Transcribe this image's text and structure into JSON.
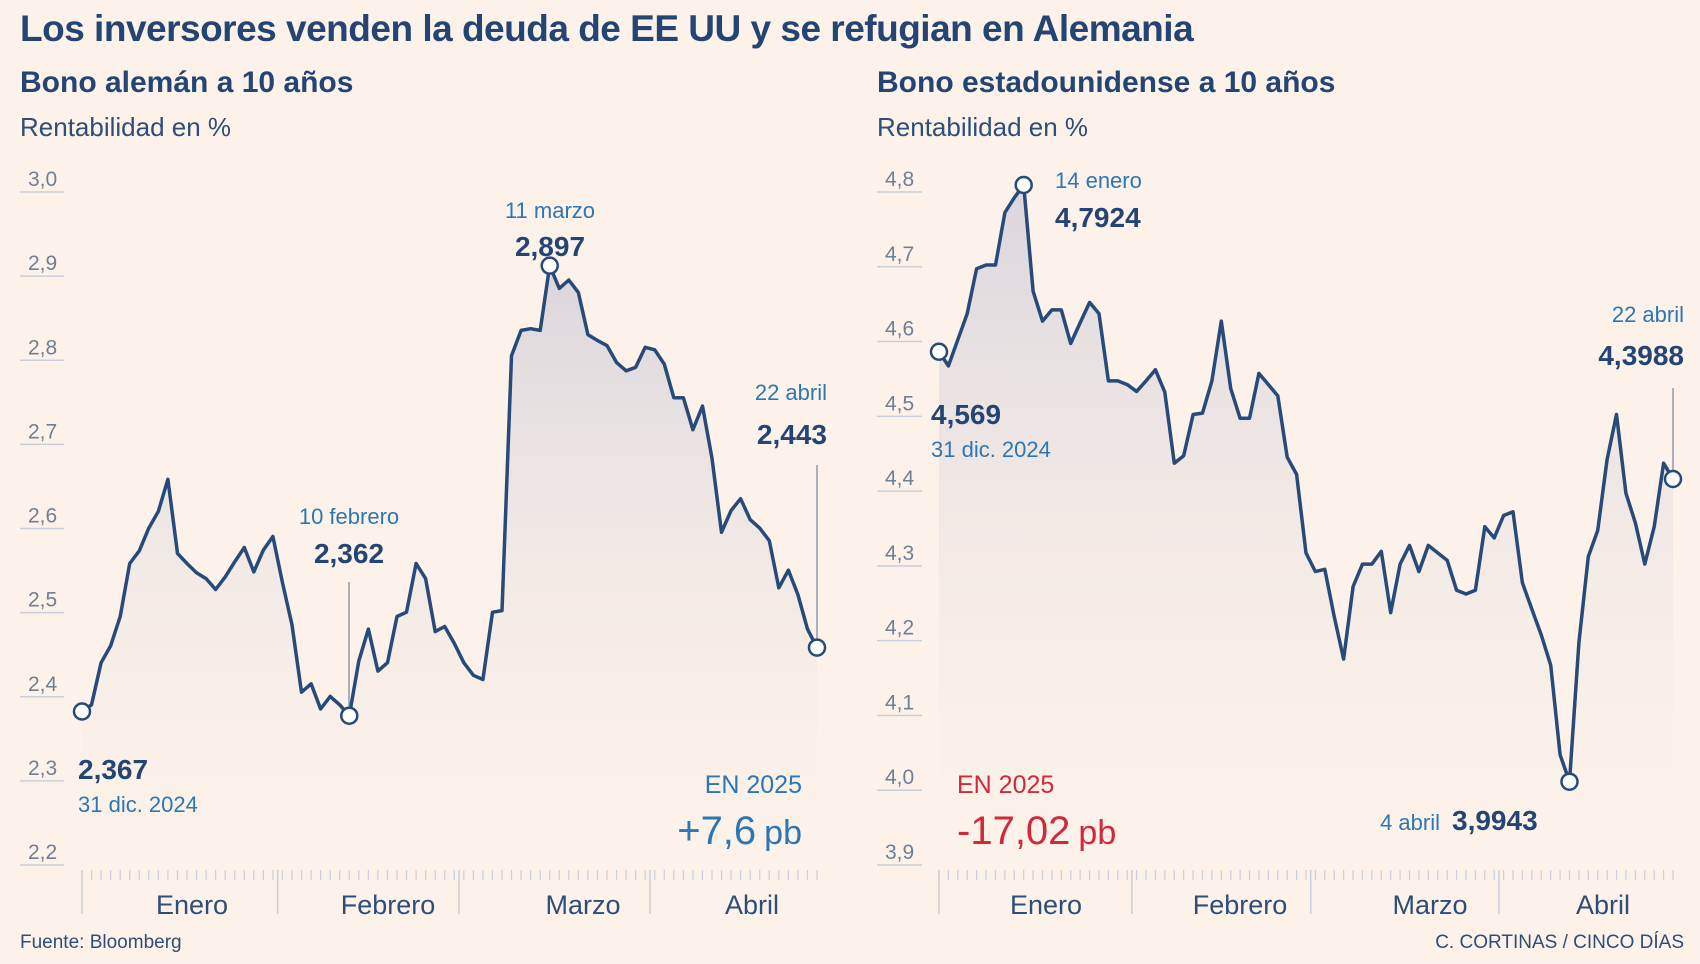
{
  "title": "Los inversores venden la deuda de EE UU y se refugian en Alemania",
  "footer": {
    "source": "Fuente: Bloomberg",
    "credit": "C. CORTINAS / CINCO DÍAS"
  },
  "colors": {
    "line": "#274a7a",
    "accent_blue": "#2d76b4",
    "accent_red": "#d2283c",
    "grid": "#c9cfdb",
    "fill_top": "#d9d4dc"
  },
  "chart_data": [
    {
      "type": "line",
      "title": "Bono alemán a 10 años",
      "ylabel": "Rentabilidad en %",
      "ylim": [
        2.2,
        3.0
      ],
      "yticks": [
        3.0,
        2.9,
        2.8,
        2.7,
        2.6,
        2.5,
        2.4,
        2.3,
        2.2
      ],
      "ytick_labels": [
        "3,0",
        "2,9",
        "2,8",
        "2,7",
        "2,6",
        "2,5",
        "2,4",
        "2,3",
        "2,2"
      ],
      "months": [
        "Enero",
        "Febrero",
        "Marzo",
        "Abril"
      ],
      "month_bounds": [
        0,
        21,
        40,
        60,
        74
      ],
      "values": [
        2.367,
        2.375,
        2.425,
        2.445,
        2.48,
        2.543,
        2.558,
        2.585,
        2.605,
        2.643,
        2.555,
        2.543,
        2.532,
        2.525,
        2.512,
        2.527,
        2.545,
        2.562,
        2.533,
        2.559,
        2.575,
        2.52,
        2.47,
        2.39,
        2.4,
        2.37,
        2.385,
        2.375,
        2.362,
        2.427,
        2.465,
        2.415,
        2.425,
        2.48,
        2.485,
        2.543,
        2.525,
        2.462,
        2.468,
        2.448,
        2.425,
        2.41,
        2.405,
        2.485,
        2.487,
        2.79,
        2.82,
        2.822,
        2.82,
        2.897,
        2.87,
        2.88,
        2.865,
        2.815,
        2.808,
        2.802,
        2.782,
        2.772,
        2.776,
        2.8,
        2.797,
        2.78,
        2.74,
        2.74,
        2.702,
        2.73,
        2.668,
        2.58,
        2.606,
        2.62,
        2.595,
        2.585,
        2.57,
        2.514,
        2.535,
        2.506,
        2.465,
        2.443
      ],
      "annotations": [
        {
          "date": "31 dic. 2024",
          "value": "2,367"
        },
        {
          "date": "10 febrero",
          "value": "2,362"
        },
        {
          "date": "11 marzo",
          "value": "2,897"
        },
        {
          "date": "22 abril",
          "value": "2,443"
        }
      ],
      "summary": {
        "label": "EN 2025",
        "value": "+7,6",
        "unit": "pb"
      }
    },
    {
      "type": "line",
      "title": "Bono estadounidense a 10 años",
      "ylabel": "Rentabilidad en %",
      "ylim": [
        3.9,
        4.8
      ],
      "yticks": [
        4.8,
        4.7,
        4.6,
        4.5,
        4.4,
        4.3,
        4.2,
        4.1,
        4.0,
        3.9
      ],
      "ytick_labels": [
        "4,8",
        "4,7",
        "4,6",
        "4,5",
        "4,4",
        "4,3",
        "4,2",
        "4,1",
        "4,0",
        "3,9"
      ],
      "months": [
        "Enero",
        "Febrero",
        "Marzo",
        "Abril"
      ],
      "month_bounds": [
        0,
        21,
        40,
        60,
        74
      ],
      "values": [
        4.569,
        4.55,
        4.585,
        4.62,
        4.68,
        4.685,
        4.685,
        4.755,
        4.775,
        4.792,
        4.65,
        4.61,
        4.625,
        4.625,
        4.58,
        4.608,
        4.635,
        4.62,
        4.53,
        4.53,
        4.525,
        4.516,
        4.53,
        4.545,
        4.515,
        4.42,
        4.43,
        4.485,
        4.487,
        4.53,
        4.61,
        4.52,
        4.48,
        4.48,
        4.54,
        4.525,
        4.51,
        4.428,
        4.405,
        4.3,
        4.275,
        4.278,
        4.215,
        4.158,
        4.255,
        4.285,
        4.285,
        4.302,
        4.22,
        4.285,
        4.31,
        4.275,
        4.31,
        4.3,
        4.29,
        4.25,
        4.245,
        4.25,
        4.335,
        4.32,
        4.35,
        4.355,
        4.26,
        4.225,
        4.19,
        4.15,
        4.03,
        3.994,
        4.18,
        4.295,
        4.33,
        4.425,
        4.485,
        4.38,
        4.34,
        4.285,
        4.335,
        4.42,
        4.3988
      ],
      "annotations": [
        {
          "date": "31 dic. 2024",
          "value": "4,569"
        },
        {
          "date": "14 enero",
          "value": "4,7924"
        },
        {
          "date": "4 abril",
          "value": "3,9943"
        },
        {
          "date": "22 abril",
          "value": "4,3988"
        }
      ],
      "summary": {
        "label": "EN 2025",
        "value": "-17,02",
        "unit": "pb"
      }
    }
  ]
}
